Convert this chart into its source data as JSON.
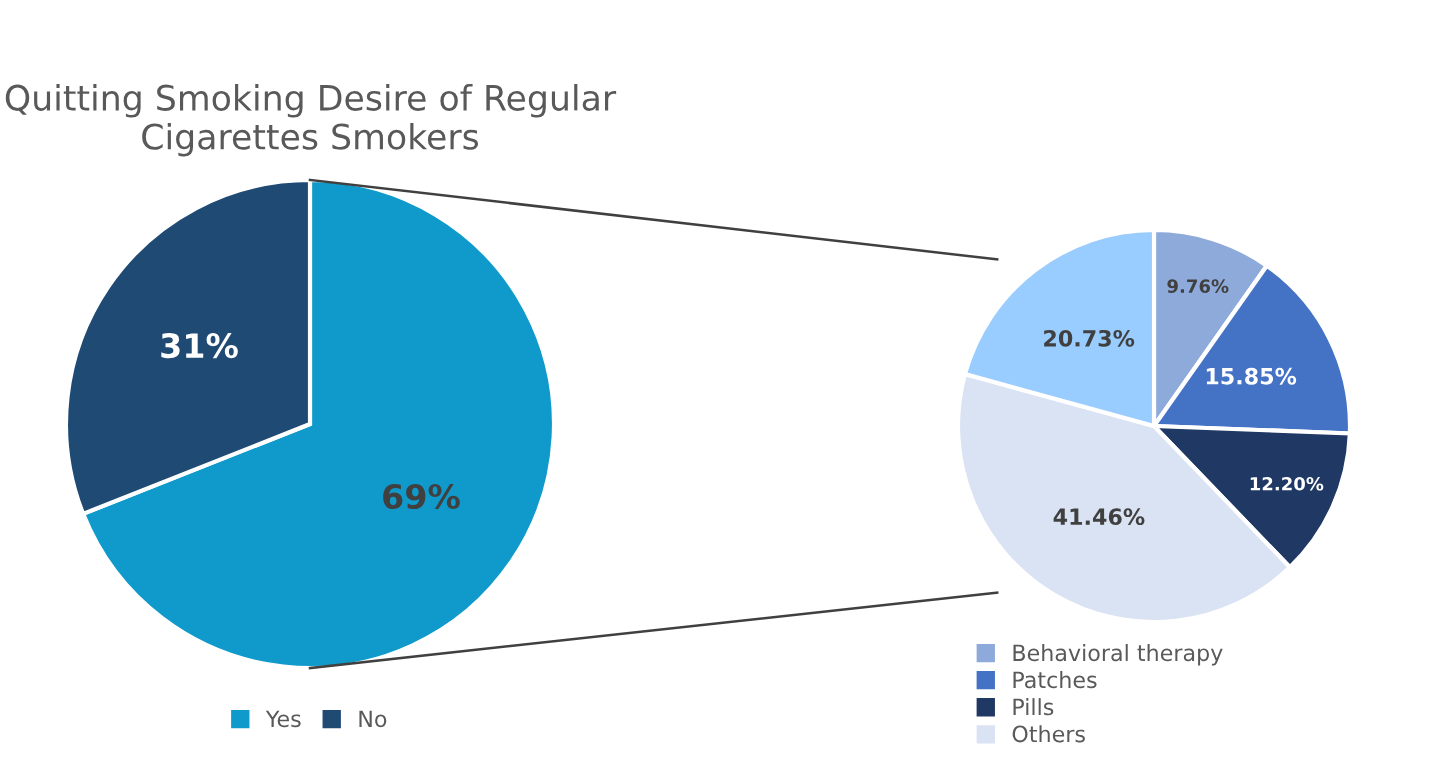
{
  "chart_data": [
    {
      "type": "pie",
      "title": "Quitting Smoking Desire of Regular\nCigarettes Smokers",
      "categories": [
        "Yes",
        "No"
      ],
      "values": [
        69,
        31
      ],
      "colors": [
        "#0f9acb",
        "#1f4a74"
      ],
      "value_labels": [
        "69%",
        "31%"
      ],
      "legend": "bottom"
    },
    {
      "type": "pie",
      "categories": [
        "Behavioral therapy",
        "Patches",
        "Pills",
        "Others",
        null
      ],
      "values": [
        9.76,
        15.85,
        12.2,
        41.46,
        20.73
      ],
      "colors": [
        "#8eaadb",
        "#4472c4",
        "#1f3864",
        "#dae3f3",
        "#99ccff"
      ],
      "value_labels": [
        "9.76%",
        "15.85%",
        "12.20%",
        "41.46%",
        "20.73%"
      ],
      "legend": "bottom"
    }
  ]
}
